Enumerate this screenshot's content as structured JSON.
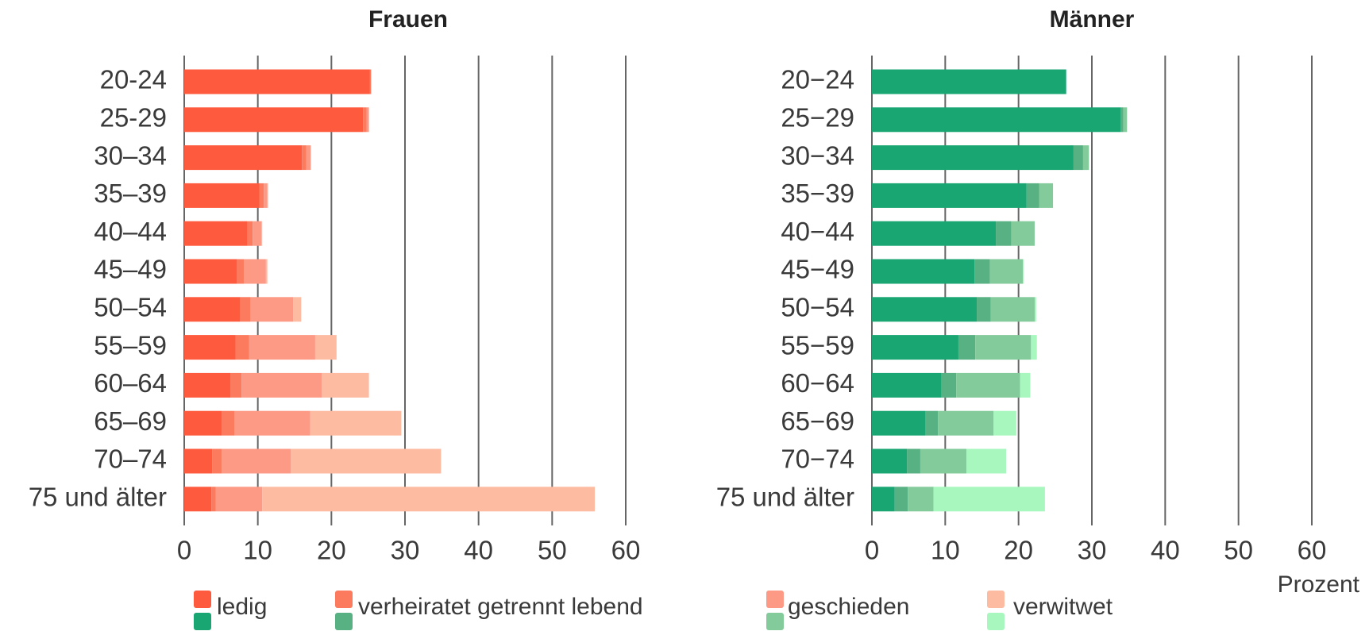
{
  "chart_data": [
    {
      "type": "stacked-barh",
      "title": "Frauen",
      "categories": [
        "20-24",
        "25-29",
        "30–34",
        "35–39",
        "40–44",
        "45–49",
        "50–54",
        "55–59",
        "60–64",
        "65–69",
        "70–74",
        "75 und älter"
      ],
      "series": [
        {
          "name": "ledig",
          "color": "#fd5a3e",
          "values": [
            25.2,
            24.3,
            16.0,
            10.2,
            8.6,
            7.2,
            7.6,
            7.0,
            6.3,
            5.1,
            3.8,
            3.7
          ]
        },
        {
          "name": "verheiratet getrennt lebend",
          "color": "#fc7b5e",
          "values": [
            0.2,
            0.5,
            0.6,
            0.6,
            0.7,
            0.9,
            1.4,
            1.8,
            1.5,
            1.7,
            1.3,
            0.6
          ]
        },
        {
          "name": "geschieden",
          "color": "#fd9a86",
          "values": [
            0,
            0.3,
            0.6,
            0.5,
            1.2,
            3.0,
            5.8,
            9.0,
            10.9,
            10.3,
            9.4,
            6.3
          ]
        },
        {
          "name": "verwitwet",
          "color": "#fdbba2",
          "values": [
            0,
            0,
            0,
            0.1,
            0.1,
            0.2,
            1.1,
            2.9,
            6.4,
            12.4,
            20.4,
            45.2
          ]
        }
      ],
      "xlim": [
        0,
        60
      ],
      "xticks": [
        0,
        10,
        20,
        30,
        40,
        50,
        60
      ],
      "grid": true
    },
    {
      "type": "stacked-barh",
      "title": "Männer",
      "x_label": "Prozent",
      "categories": [
        "20−24",
        "25−29",
        "30−34",
        "35−39",
        "40−44",
        "45−49",
        "50−54",
        "55−59",
        "60−64",
        "65−69",
        "70−74",
        "75 und älter"
      ],
      "series": [
        {
          "color": "#1aa672",
          "values": [
            26.5,
            33.9,
            27.5,
            21.1,
            16.9,
            14.0,
            14.3,
            11.8,
            9.5,
            7.3,
            4.8,
            3.1
          ]
        },
        {
          "color": "#58b183",
          "values": [
            0,
            0.4,
            1.3,
            1.7,
            2.1,
            2.1,
            1.9,
            2.3,
            2.0,
            1.7,
            1.8,
            1.8
          ]
        },
        {
          "color": "#84cb9b",
          "values": [
            0,
            0.5,
            0.8,
            1.9,
            3.2,
            4.5,
            6.0,
            7.6,
            8.7,
            7.6,
            6.3,
            3.5
          ]
        },
        {
          "color": "#a8f7bf",
          "values": [
            0,
            0,
            0,
            0,
            0,
            0.1,
            0.2,
            0.8,
            1.4,
            3.1,
            5.4,
            15.2
          ]
        }
      ],
      "xlim": [
        0,
        60
      ],
      "xticks": [
        0,
        10,
        20,
        30,
        40,
        50,
        60
      ],
      "grid": true
    }
  ]
}
